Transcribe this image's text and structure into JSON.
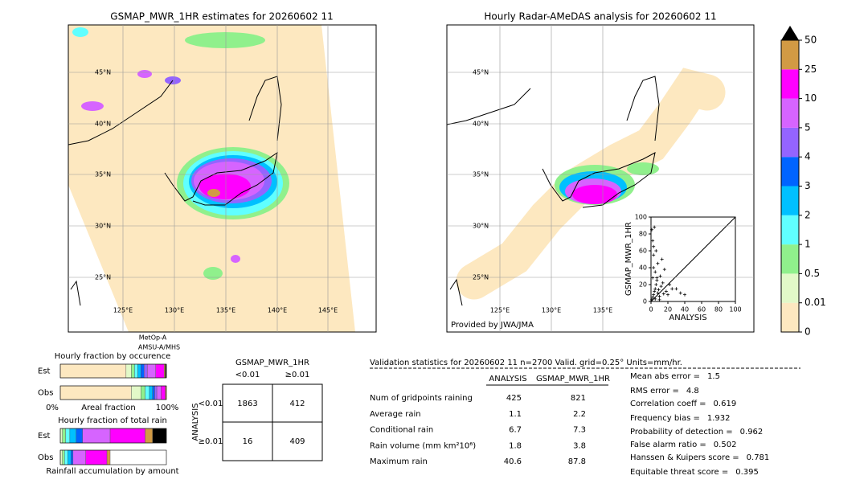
{
  "left_map": {
    "title": "GSMAP_MWR_1HR estimates for 20260602 11",
    "lat_labels": [
      "45°N",
      "40°N",
      "35°N",
      "30°N",
      "25°N"
    ],
    "lon_labels": [
      "125°E",
      "130°E",
      "135°E",
      "140°E",
      "145°E"
    ],
    "satellite": [
      "MetOp-A",
      "AMSU-A/MHS"
    ]
  },
  "right_map": {
    "title": "Hourly Radar-AMeDAS analysis for 20260602 11",
    "lat_labels": [
      "45°N",
      "40°N",
      "35°N",
      "30°N",
      "25°N"
    ],
    "lon_labels": [
      "125°E",
      "130°E",
      "135°E"
    ],
    "credit": "Provided by JWA/JMA"
  },
  "colorbar": {
    "levels": [
      0,
      0.01,
      0.5,
      1,
      2,
      3,
      4,
      5,
      10,
      25,
      50
    ],
    "colors": [
      "#fde8c0",
      "#e2f9c8",
      "#90f08c",
      "#60ffff",
      "#00c0ff",
      "#0064ff",
      "#9464ff",
      "#d664ff",
      "#ff00ff",
      "#d29a44"
    ],
    "extend_color": "#000000"
  },
  "chart_data": {
    "type": "scatter",
    "xlabel": "ANALYSIS",
    "ylabel": "GSMAP_MWR_1HR",
    "x": [
      1,
      2,
      3,
      4,
      5,
      6,
      8,
      10,
      12,
      15,
      2,
      3,
      5,
      7,
      9,
      11,
      14,
      18,
      20,
      25,
      3,
      6,
      8,
      2,
      4,
      1,
      13,
      16,
      22,
      30,
      35,
      40,
      5,
      10,
      7,
      3
    ],
    "y": [
      2,
      5,
      8,
      12,
      15,
      20,
      10,
      6,
      18,
      9,
      28,
      40,
      35,
      25,
      14,
      30,
      22,
      12,
      8,
      15,
      55,
      60,
      45,
      72,
      88,
      85,
      50,
      38,
      20,
      15,
      10,
      8,
      3,
      2,
      28,
      65
    ],
    "xlim": [
      0,
      100
    ],
    "ylim": [
      0,
      100
    ],
    "xticks": [
      0,
      20,
      40,
      60,
      80,
      100
    ],
    "yticks": [
      0,
      20,
      40,
      60,
      80,
      100
    ],
    "color": "#000000"
  },
  "fraction_occurrence": {
    "title": "Hourly fraction by occurence",
    "rows": [
      {
        "name": "Est",
        "values": [
          62,
          5,
          3,
          3,
          3,
          3,
          3,
          8,
          8,
          1,
          1
        ],
        "colors": [
          "#fde8c0",
          "#e2f9c8",
          "#90f08c",
          "#60ffff",
          "#00c0ff",
          "#0064ff",
          "#9464ff",
          "#d664ff",
          "#ff00ff",
          "#d29a44",
          "#000000"
        ]
      },
      {
        "name": "Obs",
        "values": [
          67,
          9,
          4,
          4,
          3,
          2,
          2,
          4,
          4,
          1
        ],
        "colors": [
          "#fde8c0",
          "#e2f9c8",
          "#90f08c",
          "#60ffff",
          "#00c0ff",
          "#0064ff",
          "#9464ff",
          "#d664ff",
          "#ff00ff",
          "#d29a44"
        ]
      }
    ],
    "axis_labels": [
      "0%",
      "Areal fraction",
      "100%"
    ]
  },
  "fraction_rain": {
    "title": "Hourly fraction of total rain",
    "rows": [
      {
        "name": "Est",
        "values": [
          2,
          3,
          4,
          6,
          6,
          26,
          33,
          7,
          13
        ],
        "colors": [
          "#e2f9c8",
          "#90f08c",
          "#60ffff",
          "#00c0ff",
          "#0064ff",
          "#d664ff",
          "#ff00ff",
          "#d29a44",
          "#000000"
        ]
      },
      {
        "name": "Obs",
        "values": [
          2,
          2,
          3,
          3,
          2,
          12,
          20,
          3
        ],
        "colors": [
          "#e2f9c8",
          "#90f08c",
          "#60ffff",
          "#00c0ff",
          "#0064ff",
          "#d664ff",
          "#ff00ff",
          "#d29a44"
        ]
      }
    ],
    "caption": "Rainfall accumulation by amount"
  },
  "contingency": {
    "title": "GSMAP_MWR_1HR",
    "col_labels": [
      "<0.01",
      "≥0.01"
    ],
    "row_title": "ANALYSIS",
    "row_labels": [
      "<0.01",
      "≥0.01"
    ],
    "cells": [
      [
        1863,
        412
      ],
      [
        16,
        409
      ]
    ]
  },
  "validation": {
    "title": "Validation statistics for 20260602 11  n=2700 Valid. grid=0.25° Units=mm/hr.",
    "columns": [
      "ANALYSIS",
      "GSMAP_MWR_1HR"
    ],
    "rows": [
      {
        "label": "Num of gridpoints raining",
        "values": [
          425,
          821
        ]
      },
      {
        "label": "Average rain",
        "values": [
          1.1,
          2.2
        ]
      },
      {
        "label": "Conditional rain",
        "values": [
          6.7,
          7.3
        ]
      },
      {
        "label": "Rain volume (mm km²10⁶)",
        "values": [
          1.8,
          3.8
        ]
      },
      {
        "label": "Maximum rain",
        "values": [
          40.6,
          87.8
        ]
      }
    ]
  },
  "scores": [
    {
      "label": "Mean abs error =",
      "value": 1.5
    },
    {
      "label": "RMS error =",
      "value": 4.8
    },
    {
      "label": "Correlation coeff =",
      "value": 0.619
    },
    {
      "label": "Frequency bias =",
      "value": 1.932
    },
    {
      "label": "Probability of detection =",
      "value": 0.962
    },
    {
      "label": "False alarm ratio =",
      "value": 0.502
    },
    {
      "label": "Hanssen & Kuipers score =",
      "value": 0.781
    },
    {
      "label": "Equitable threat score =",
      "value": 0.395
    }
  ]
}
